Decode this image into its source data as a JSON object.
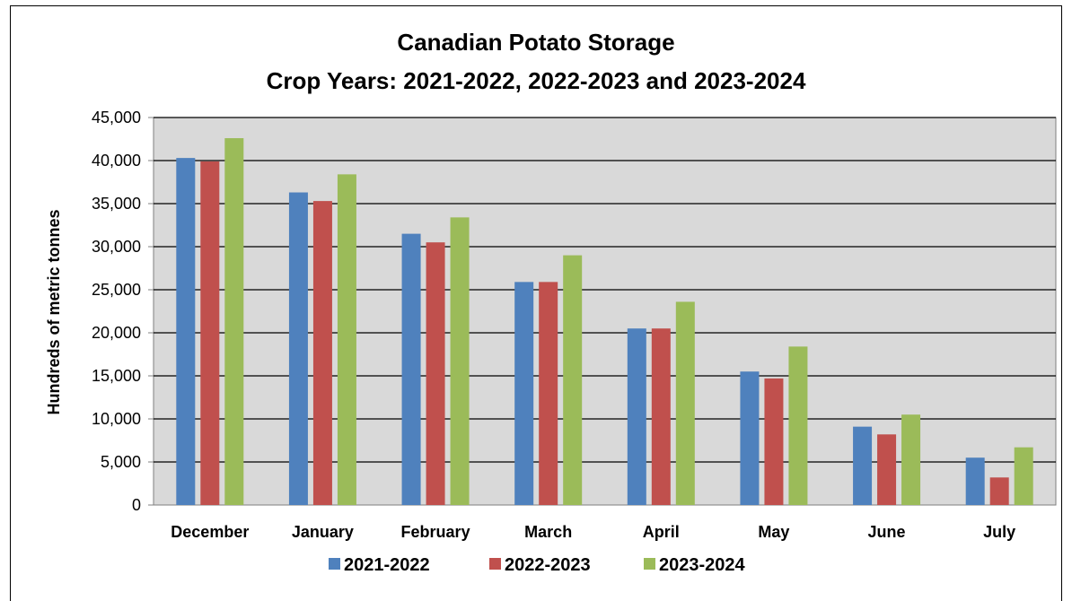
{
  "chart_data": {
    "type": "bar",
    "title": [
      "Canadian Potato Storage",
      "Crop Years:  2021-2022, 2022-2023 and 2023-2024"
    ],
    "ylabel": "Hundreds of metric tonnes",
    "xlabel": "",
    "ylim": [
      0,
      45000
    ],
    "ytick_step": 5000,
    "ytick_labels": [
      "0",
      "5,000",
      "10,000",
      "15,000",
      "20,000",
      "25,000",
      "30,000",
      "35,000",
      "40,000",
      "45,000"
    ],
    "grid": true,
    "legend_position": "bottom",
    "categories": [
      "December",
      "January",
      "February",
      "March",
      "April",
      "May",
      "June",
      "July"
    ],
    "series": [
      {
        "name": "2021-2022",
        "color": "#4f81bd",
        "values": [
          40300,
          36300,
          31500,
          25900,
          20500,
          15500,
          9100,
          5500
        ]
      },
      {
        "name": "2022-2023",
        "color": "#c0504d",
        "values": [
          39900,
          35300,
          30500,
          25900,
          20500,
          14700,
          8200,
          3200
        ]
      },
      {
        "name": "2023-2024",
        "color": "#9bbb59",
        "values": [
          42600,
          38400,
          33400,
          29000,
          23600,
          18400,
          10500,
          6700
        ]
      }
    ],
    "plot_background": "#d9d9d9"
  }
}
